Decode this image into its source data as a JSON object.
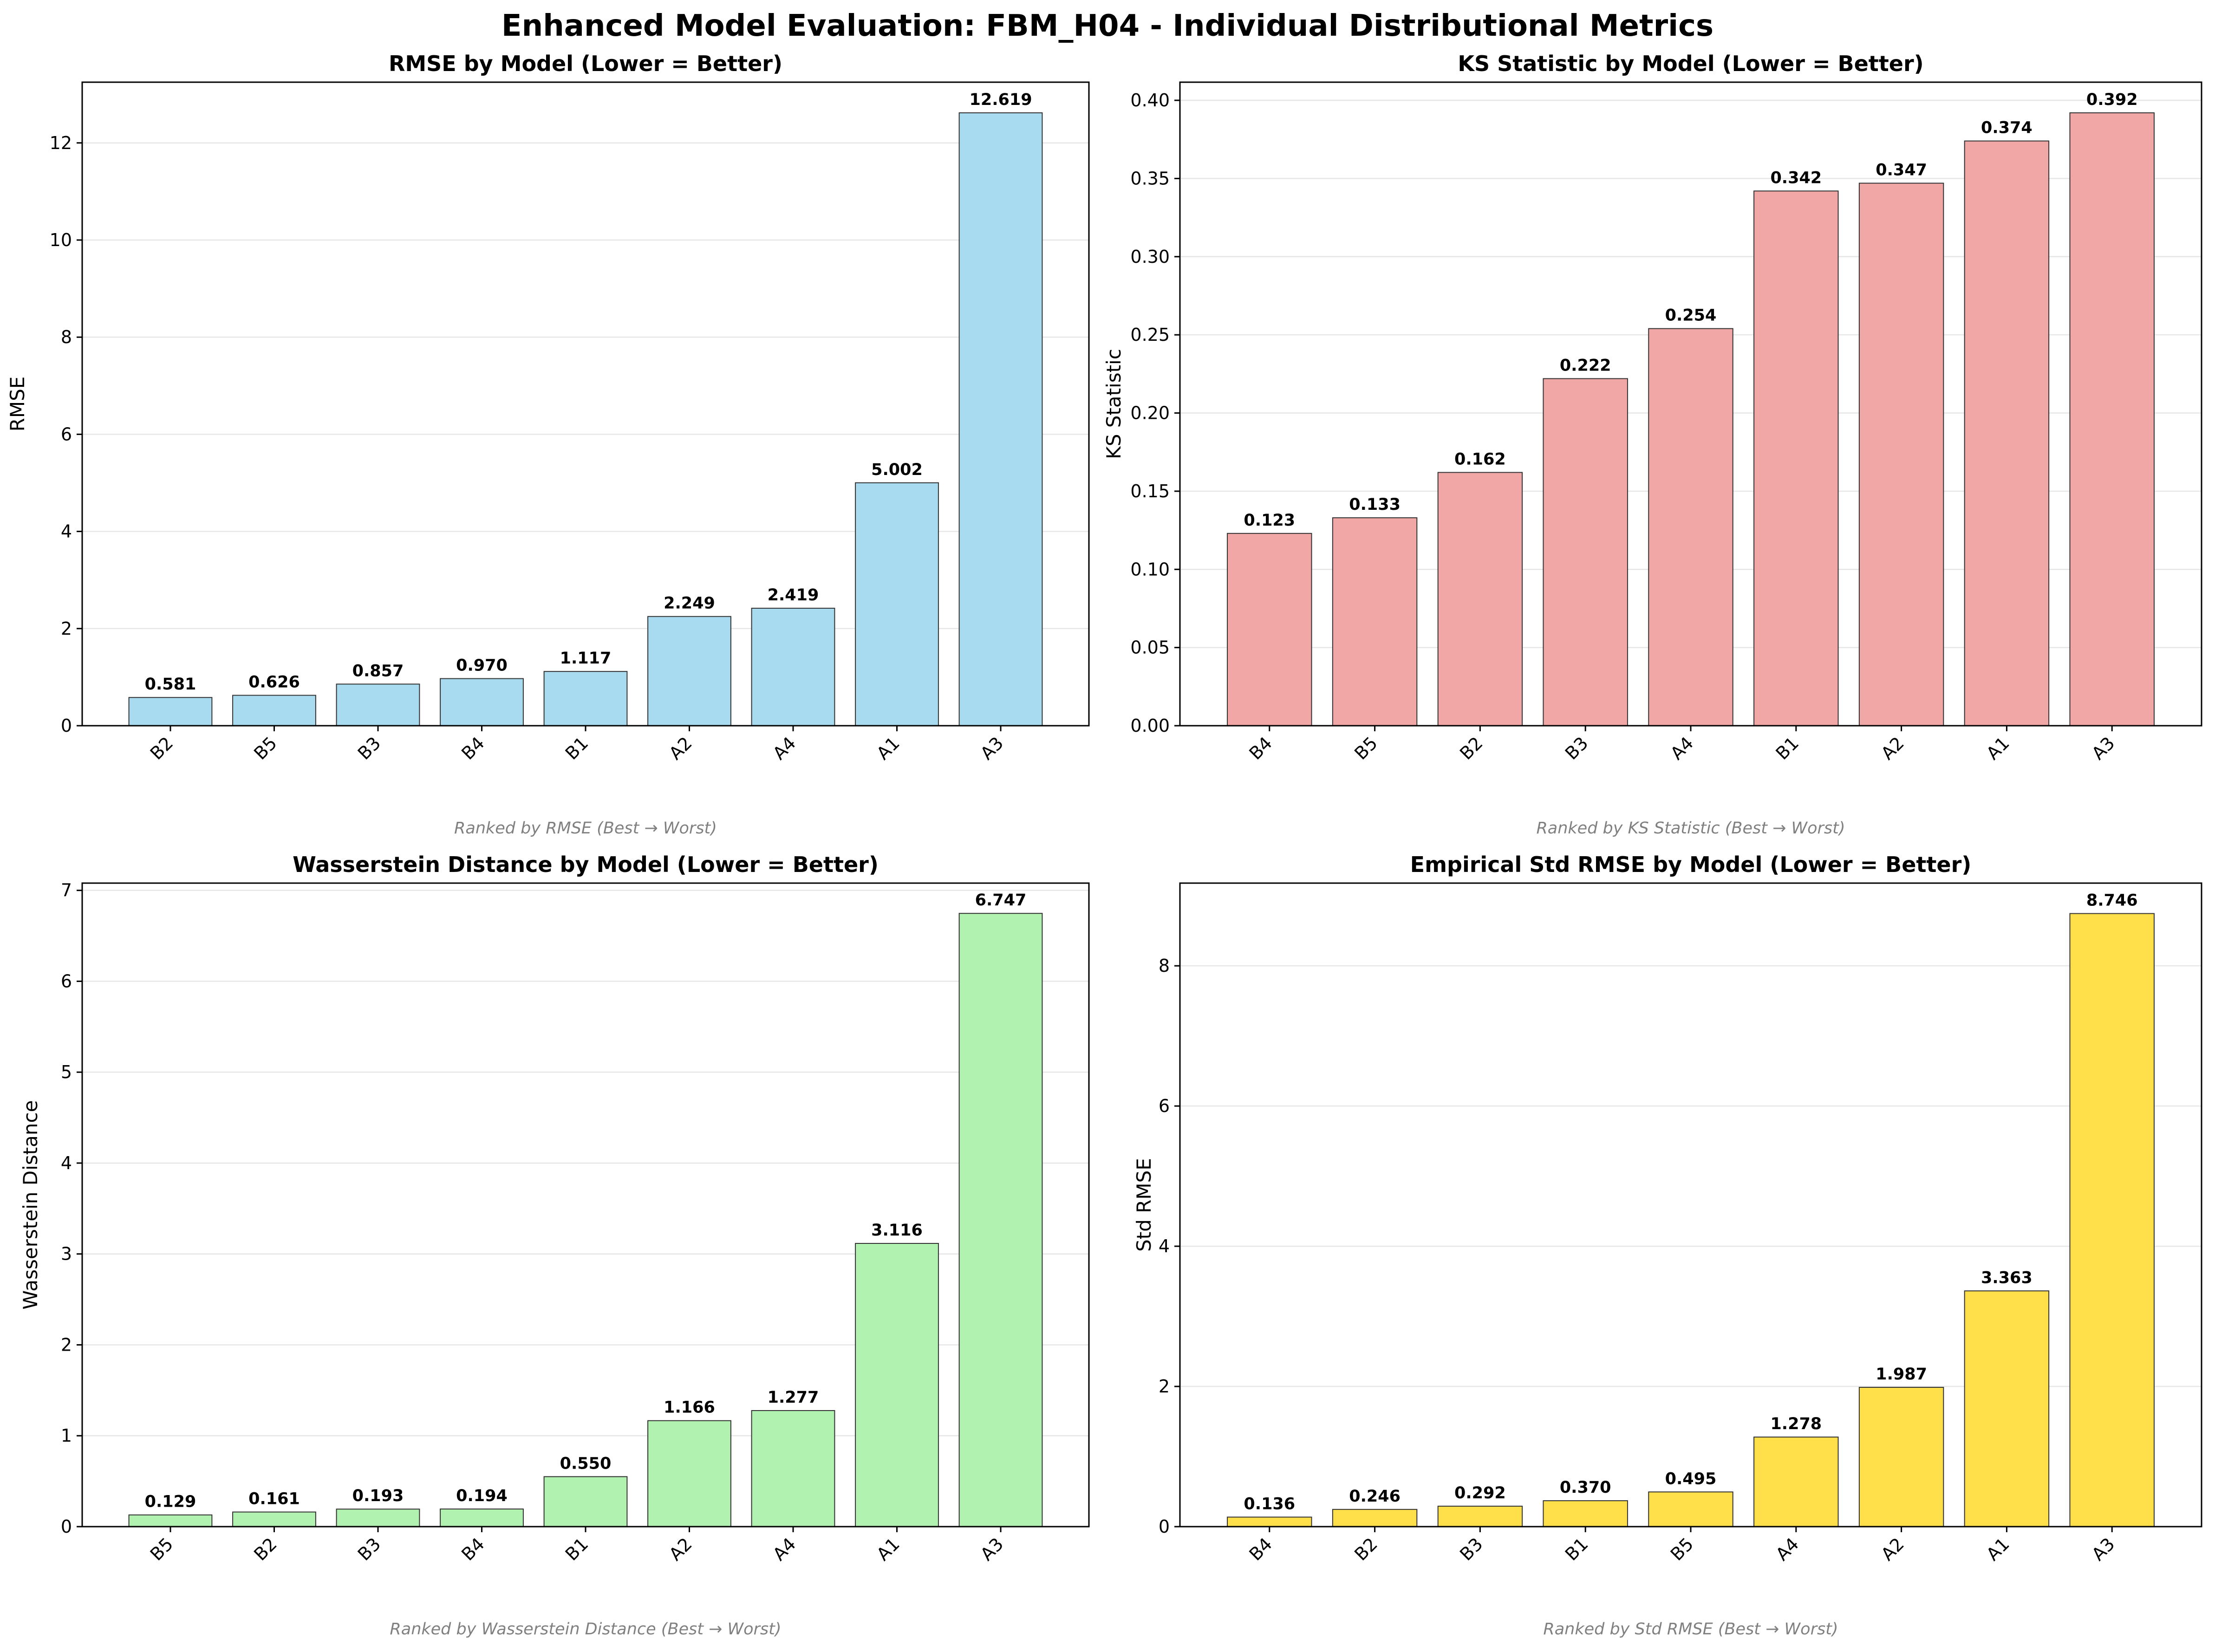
{
  "figure": {
    "title": "Enhanced Model Evaluation: FBM_H04 - Individual Distributional Metrics"
  },
  "chart_data": [
    {
      "type": "bar",
      "title": "RMSE by Model (Lower = Better)",
      "ylabel": "RMSE",
      "note": "Ranked by RMSE (Best → Worst)",
      "color": "#a8dbef",
      "categories": [
        "B2",
        "B5",
        "B3",
        "B4",
        "B1",
        "A2",
        "A4",
        "A1",
        "A3"
      ],
      "values": [
        0.581,
        0.626,
        0.857,
        0.97,
        1.117,
        2.249,
        2.419,
        5.002,
        12.619
      ],
      "value_labels": [
        "0.581",
        "0.626",
        "0.857",
        "0.970",
        "1.117",
        "2.249",
        "2.419",
        "5.002",
        "12.619"
      ],
      "ylim": [
        0,
        13.25
      ],
      "yticks": [
        0,
        2,
        4,
        6,
        8,
        10,
        12
      ],
      "ytick_labels": [
        "0",
        "2",
        "4",
        "6",
        "8",
        "10",
        "12"
      ],
      "grid": "y"
    },
    {
      "type": "bar",
      "title": "KS Statistic by Model (Lower = Better)",
      "ylabel": "KS Statistic",
      "note": "Ranked by KS Statistic (Best → Worst)",
      "color": "#f2a7a7",
      "categories": [
        "B4",
        "B5",
        "B2",
        "B3",
        "A4",
        "B1",
        "A2",
        "A1",
        "A3"
      ],
      "values": [
        0.123,
        0.133,
        0.162,
        0.222,
        0.254,
        0.342,
        0.347,
        0.374,
        0.392
      ],
      "value_labels": [
        "0.123",
        "0.133",
        "0.162",
        "0.222",
        "0.254",
        "0.342",
        "0.347",
        "0.374",
        "0.392"
      ],
      "ylim": [
        0,
        0.4116
      ],
      "yticks": [
        0,
        0.05,
        0.1,
        0.15,
        0.2,
        0.25,
        0.3,
        0.35,
        0.4
      ],
      "ytick_labels": [
        "0.00",
        "0.05",
        "0.10",
        "0.15",
        "0.20",
        "0.25",
        "0.30",
        "0.35",
        "0.40"
      ],
      "grid": "y"
    },
    {
      "type": "bar",
      "title": "Wasserstein Distance by Model (Lower = Better)",
      "ylabel": "Wasserstein Distance",
      "note": "Ranked by Wasserstein Distance (Best → Worst)",
      "color": "#b2f2b0",
      "categories": [
        "B5",
        "B2",
        "B3",
        "B4",
        "B1",
        "A2",
        "A4",
        "A1",
        "A3"
      ],
      "values": [
        0.129,
        0.161,
        0.193,
        0.194,
        0.55,
        1.166,
        1.277,
        3.116,
        6.747
      ],
      "value_labels": [
        "0.129",
        "0.161",
        "0.193",
        "0.194",
        "0.550",
        "1.166",
        "1.277",
        "3.116",
        "6.747"
      ],
      "ylim": [
        0,
        7.08
      ],
      "yticks": [
        0,
        1,
        2,
        3,
        4,
        5,
        6,
        7
      ],
      "ytick_labels": [
        "0",
        "1",
        "2",
        "3",
        "4",
        "5",
        "6",
        "7"
      ],
      "grid": "y"
    },
    {
      "type": "bar",
      "title": "Empirical Std RMSE by Model (Lower = Better)",
      "ylabel": "Std RMSE",
      "note": "Ranked by Std RMSE (Best → Worst)",
      "color": "#ffe04a",
      "categories": [
        "B4",
        "B2",
        "B3",
        "B1",
        "B5",
        "A4",
        "A2",
        "A1",
        "A3"
      ],
      "values": [
        0.136,
        0.246,
        0.292,
        0.37,
        0.495,
        1.278,
        1.987,
        3.363,
        8.746
      ],
      "value_labels": [
        "0.136",
        "0.246",
        "0.292",
        "0.370",
        "0.495",
        "1.278",
        "1.987",
        "3.363",
        "8.746"
      ],
      "ylim": [
        0,
        9.18
      ],
      "yticks": [
        0,
        2,
        4,
        6,
        8
      ],
      "ytick_labels": [
        "0",
        "2",
        "4",
        "6",
        "8"
      ],
      "grid": "y"
    }
  ]
}
